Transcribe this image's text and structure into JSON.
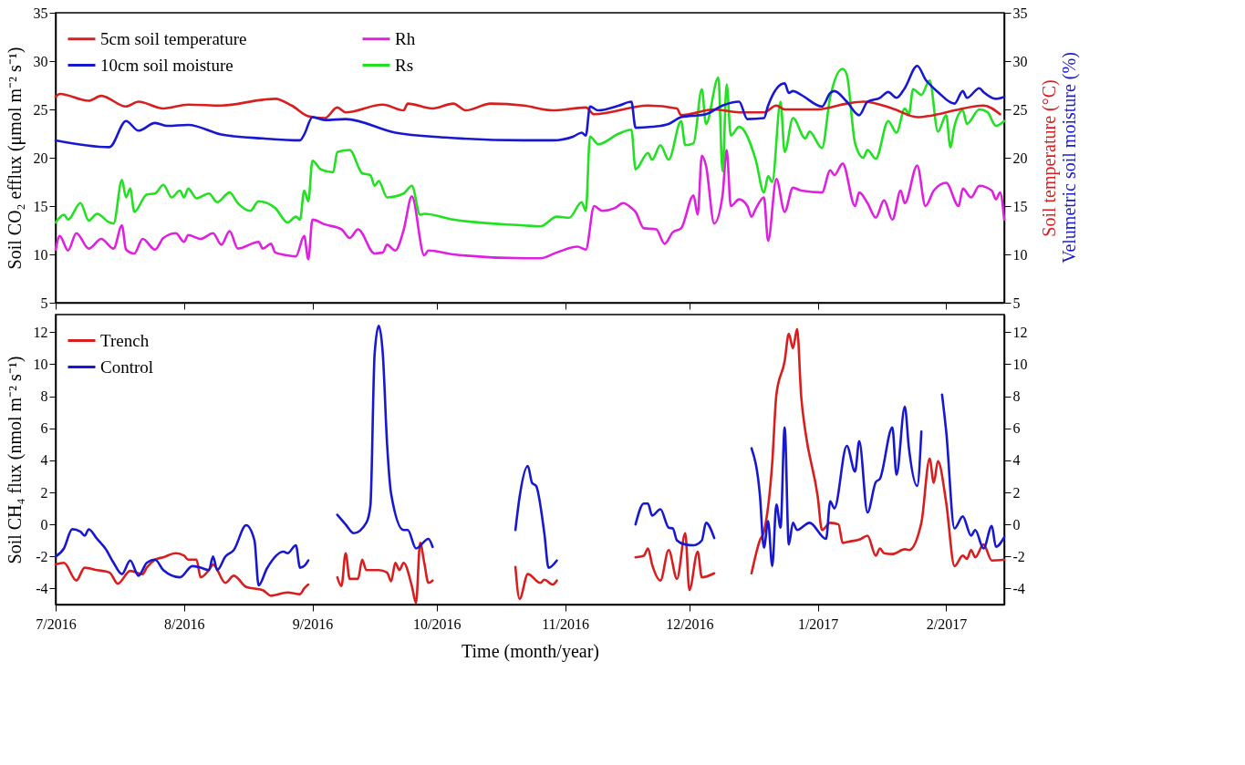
{
  "chart_data": [
    {
      "type": "line",
      "ylabel": "Soil CO₂ efflux (μmol m⁻² s⁻¹)",
      "y2label": "Soil temperature (°C)",
      "annotations": [
        "Velumetric soil moisture (%)"
      ],
      "xlim": [
        "2016-07-01",
        "2017-02-15"
      ],
      "xticks": [
        "2016-07-01",
        "2016-08-01",
        "2016-09-01",
        "2016-10-01",
        "2016-11-01",
        "2016-12-01",
        "2017-01-01",
        "2017-02-01"
      ],
      "tick_labels": "y",
      "ylim": [
        5,
        35
      ],
      "yticks": [
        5,
        10,
        15,
        20,
        25,
        30,
        35
      ],
      "y2lim": [
        5,
        35
      ],
      "y2ticks": [
        5,
        10,
        15,
        20,
        25,
        30,
        35
      ],
      "legend": "top left",
      "series": [
        {
          "name": "5cm soil temperature",
          "color": "#d81e1e",
          "axis": "y2",
          "x": [
            "2016-07-01",
            "2016-07-02",
            "2016-07-09",
            "2016-07-12",
            "2016-07-18",
            "2016-07-21",
            "2016-07-27",
            "2016-08-02",
            "2016-08-10",
            "2016-08-20",
            "2016-08-23",
            "2016-08-27",
            "2016-08-31",
            "2016-09-04",
            "2016-09-07",
            "2016-09-09",
            "2016-09-18",
            "2016-09-23",
            "2016-09-24",
            "2016-09-30",
            "2016-10-05",
            "2016-10-08",
            "2016-10-14",
            "2016-10-22",
            "2016-10-29",
            "2016-11-06",
            "2016-11-08",
            "2016-11-21",
            "2016-11-28",
            "2016-11-29",
            "2016-12-07",
            "2016-12-13",
            "2016-12-19",
            "2016-12-22",
            "2016-12-24",
            "2017-01-01",
            "2017-01-08",
            "2017-01-12",
            "2017-01-19",
            "2017-01-25",
            "2017-01-30",
            "2017-02-03",
            "2017-02-10",
            "2017-02-14"
          ],
          "values": [
            26.3,
            26.6,
            25.9,
            26.4,
            25.3,
            25.8,
            25.1,
            25.5,
            25.4,
            26.0,
            26.1,
            25.4,
            24.3,
            24.1,
            25.2,
            24.7,
            25.5,
            24.9,
            25.6,
            25.1,
            25.6,
            24.9,
            25.6,
            25.4,
            24.9,
            25.2,
            24.5,
            25.4,
            25.1,
            24.4,
            25.0,
            24.7,
            24.7,
            25.4,
            25.0,
            25.0,
            25.6,
            25.8,
            25.1,
            24.2,
            24.5,
            24.9,
            25.4,
            24.5
          ]
        },
        {
          "name": "Rh",
          "color": "#e020e0",
          "x": [
            "2016-07-01",
            "2016-07-02",
            "2016-07-04",
            "2016-07-06",
            "2016-07-09",
            "2016-07-12",
            "2016-07-15",
            "2016-07-17",
            "2016-07-18",
            "2016-07-20",
            "2016-07-22",
            "2016-07-25",
            "2016-07-27",
            "2016-07-30",
            "2016-08-01",
            "2016-08-02",
            "2016-08-05",
            "2016-08-08",
            "2016-08-10",
            "2016-08-12",
            "2016-08-14",
            "2016-08-19",
            "2016-08-20",
            "2016-08-22",
            "2016-08-23",
            "2016-08-26",
            "2016-08-28",
            "2016-08-30",
            "2016-08-31",
            "2016-09-01",
            "2016-09-04",
            "2016-09-08",
            "2016-09-10",
            "2016-09-12",
            "2016-09-16",
            "2016-09-18",
            "2016-09-19",
            "2016-09-21",
            "2016-09-23",
            "2016-09-25",
            "2016-09-28",
            "2016-09-29",
            "2016-10-05",
            "2016-10-22",
            "2016-10-26",
            "2016-10-30",
            "2016-11-04",
            "2016-11-06",
            "2016-11-08",
            "2016-11-10",
            "2016-11-13",
            "2016-11-15",
            "2016-11-17",
            "2016-11-18",
            "2016-11-20",
            "2016-11-23",
            "2016-11-25",
            "2016-11-27",
            "2016-11-29",
            "2016-12-02",
            "2016-12-03",
            "2016-12-04",
            "2016-12-05",
            "2016-12-07",
            "2016-12-09",
            "2016-12-10",
            "2016-12-11",
            "2016-12-13",
            "2016-12-15",
            "2016-12-16",
            "2016-12-17",
            "2016-12-19",
            "2016-12-20",
            "2016-12-22",
            "2016-12-24",
            "2016-12-26",
            "2016-12-28",
            "2017-01-02",
            "2017-01-04",
            "2017-01-05",
            "2017-01-07",
            "2017-01-10",
            "2017-01-11",
            "2017-01-13",
            "2017-01-15",
            "2017-01-17",
            "2017-01-19",
            "2017-01-21",
            "2017-01-22",
            "2017-01-25",
            "2017-01-27",
            "2017-01-29",
            "2017-02-01",
            "2017-02-04",
            "2017-02-05",
            "2017-02-07",
            "2017-02-09",
            "2017-02-12",
            "2017-02-13",
            "2017-02-14",
            "2017-02-15"
          ],
          "values": [
            10.5,
            11.9,
            10.4,
            12.2,
            10.6,
            11.6,
            10.6,
            13.0,
            10.5,
            10.1,
            11.6,
            10.5,
            11.7,
            12.2,
            11.3,
            12.0,
            11.6,
            12.2,
            11.0,
            12.4,
            10.6,
            11.3,
            10.6,
            11.1,
            10.2,
            9.9,
            9.8,
            11.9,
            9.5,
            13.6,
            13.1,
            12.6,
            11.7,
            12.6,
            10.1,
            10.2,
            11.0,
            10.4,
            12.5,
            16.0,
            9.9,
            10.4,
            10.0,
            9.6,
            9.6,
            10.2,
            10.8,
            10.5,
            15.0,
            14.5,
            14.8,
            15.3,
            14.8,
            14.4,
            12.7,
            12.6,
            11.1,
            12.3,
            12.7,
            16.1,
            14.1,
            20.2,
            19.2,
            13.2,
            16.1,
            20.8,
            15.0,
            15.7,
            15.0,
            13.9,
            14.7,
            15.9,
            11.4,
            17.8,
            14.4,
            16.9,
            16.6,
            16.4,
            18.7,
            18.2,
            19.4,
            15.0,
            16.4,
            15.3,
            13.8,
            15.6,
            13.6,
            16.6,
            15.3,
            19.2,
            15.0,
            16.6,
            17.4,
            15.0,
            16.8,
            15.9,
            17.1,
            16.6,
            15.7,
            16.4,
            13.6
          ]
        },
        {
          "name": "10cm soil moisture",
          "color": "#1818d0",
          "axis": "y2",
          "x": [
            "2016-07-01",
            "2016-07-14",
            "2016-07-18",
            "2016-07-21",
            "2016-07-25",
            "2016-07-28",
            "2016-08-02",
            "2016-08-10",
            "2016-08-20",
            "2016-08-29",
            "2016-08-30",
            "2016-09-01",
            "2016-09-04",
            "2016-09-09",
            "2016-09-21",
            "2016-10-03",
            "2016-10-22",
            "2016-10-29",
            "2016-11-03",
            "2016-11-05",
            "2016-11-06",
            "2016-11-07",
            "2016-11-09",
            "2016-11-14",
            "2016-11-17",
            "2016-11-18",
            "2016-11-22",
            "2016-11-26",
            "2016-11-29",
            "2016-12-05",
            "2016-12-09",
            "2016-12-13",
            "2016-12-15",
            "2016-12-19",
            "2016-12-20",
            "2016-12-24",
            "2016-12-25",
            "2016-12-26",
            "2016-12-28",
            "2017-01-02",
            "2017-01-04",
            "2017-01-05",
            "2017-01-08",
            "2017-01-11",
            "2017-01-13",
            "2017-01-16",
            "2017-01-18",
            "2017-01-20",
            "2017-01-22",
            "2017-01-25",
            "2017-01-27",
            "2017-01-30",
            "2017-02-03",
            "2017-02-05",
            "2017-02-06",
            "2017-02-09",
            "2017-02-10",
            "2017-02-13",
            "2017-02-15"
          ],
          "values": [
            21.8,
            21.1,
            23.8,
            22.8,
            23.6,
            23.3,
            23.4,
            22.4,
            22.0,
            21.8,
            22.4,
            24.2,
            23.9,
            24.0,
            22.6,
            22.1,
            21.8,
            21.8,
            22.2,
            22.6,
            22.3,
            25.3,
            24.9,
            25.4,
            25.8,
            23.1,
            23.2,
            23.5,
            24.2,
            24.5,
            25.4,
            25.8,
            24.0,
            24.1,
            25.4,
            27.7,
            26.7,
            26.9,
            26.5,
            25.3,
            26.7,
            26.9,
            25.8,
            24.4,
            25.8,
            26.2,
            26.8,
            26.2,
            27.2,
            29.5,
            28.1,
            26.8,
            25.6,
            26.9,
            26.2,
            27.2,
            26.8,
            26.1,
            26.3
          ]
        },
        {
          "name": "Rs",
          "color": "#22e022",
          "x": [
            "2016-07-01",
            "2016-07-03",
            "2016-07-04",
            "2016-07-07",
            "2016-07-09",
            "2016-07-11",
            "2016-07-14",
            "2016-07-15",
            "2016-07-17",
            "2016-07-18",
            "2016-07-19",
            "2016-07-20",
            "2016-07-23",
            "2016-07-25",
            "2016-07-27",
            "2016-07-29",
            "2016-07-31",
            "2016-08-01",
            "2016-08-02",
            "2016-08-04",
            "2016-08-07",
            "2016-08-09",
            "2016-08-12",
            "2016-08-14",
            "2016-08-17",
            "2016-08-19",
            "2016-08-23",
            "2016-08-26",
            "2016-08-28",
            "2016-08-29",
            "2016-08-30",
            "2016-08-31",
            "2016-09-01",
            "2016-09-03",
            "2016-09-06",
            "2016-09-07",
            "2016-09-10",
            "2016-09-13",
            "2016-09-15",
            "2016-09-16",
            "2016-09-17",
            "2016-09-19",
            "2016-09-23",
            "2016-09-25",
            "2016-09-27",
            "2016-09-28",
            "2016-10-05",
            "2016-10-22",
            "2016-10-26",
            "2016-10-30",
            "2016-11-02",
            "2016-11-05",
            "2016-11-06",
            "2016-11-07",
            "2016-11-09",
            "2016-11-14",
            "2016-11-17",
            "2016-11-18",
            "2016-11-21",
            "2016-11-22",
            "2016-11-24",
            "2016-11-26",
            "2016-11-29",
            "2016-11-30",
            "2016-12-02",
            "2016-12-04",
            "2016-12-05",
            "2016-12-08",
            "2016-12-09",
            "2016-12-10",
            "2016-12-11",
            "2016-12-13",
            "2016-12-17",
            "2016-12-19",
            "2016-12-20",
            "2016-12-21",
            "2016-12-23",
            "2016-12-24",
            "2016-12-26",
            "2016-12-29",
            "2016-12-30",
            "2017-01-02",
            "2017-01-04",
            "2017-01-07",
            "2017-01-08",
            "2017-01-10",
            "2017-01-12",
            "2017-01-13",
            "2017-01-15",
            "2017-01-18",
            "2017-01-20",
            "2017-01-22",
            "2017-01-23",
            "2017-01-24",
            "2017-01-26",
            "2017-01-28",
            "2017-01-30",
            "2017-02-01",
            "2017-02-02",
            "2017-02-03",
            "2017-02-05",
            "2017-02-06",
            "2017-02-09",
            "2017-02-11",
            "2017-02-13",
            "2017-02-15"
          ],
          "values": [
            13.3,
            14.1,
            13.6,
            15.3,
            13.5,
            14.2,
            13.3,
            13.2,
            17.7,
            15.9,
            16.8,
            14.4,
            16.2,
            16.3,
            17.2,
            15.9,
            16.6,
            15.9,
            16.8,
            15.8,
            16.3,
            15.4,
            16.4,
            15.3,
            14.5,
            15.5,
            14.8,
            13.3,
            13.9,
            13.6,
            16.6,
            15.5,
            19.7,
            18.8,
            18.5,
            20.6,
            20.8,
            18.4,
            18.2,
            17.1,
            17.6,
            15.9,
            16.3,
            17.1,
            14.1,
            14.2,
            13.6,
            13.0,
            12.9,
            13.9,
            13.8,
            15.4,
            14.5,
            22.2,
            21.4,
            22.5,
            22.9,
            18.8,
            20.5,
            19.8,
            21.3,
            19.8,
            23.8,
            21.3,
            21.5,
            27.1,
            23.5,
            28.3,
            18.6,
            27.6,
            22.3,
            23.2,
            19.8,
            16.4,
            18.1,
            17.5,
            25.8,
            20.6,
            24.1,
            22.0,
            22.7,
            21.0,
            26.3,
            29.2,
            28.6,
            21.5,
            20.0,
            20.8,
            19.9,
            23.8,
            22.6,
            25.1,
            24.5,
            27.1,
            26.5,
            28.0,
            22.7,
            24.4,
            21.1,
            23.3,
            24.9,
            23.5,
            25.0,
            24.7,
            23.3,
            23.8
          ]
        }
      ]
    },
    {
      "type": "line",
      "ylabel": "Soil CH₄ flux (nmol m⁻² s⁻¹)",
      "xlabel": "Time (month/year)",
      "xlim": [
        "2016-07-01",
        "2017-02-15"
      ],
      "xticks": [
        {
          "value": "2016-07-01",
          "label": "7/2016"
        },
        {
          "value": "2016-08-01",
          "label": "8/2016"
        },
        {
          "value": "2016-09-01",
          "label": "9/2016"
        },
        {
          "value": "2016-10-01",
          "label": "10/2016"
        },
        {
          "value": "2016-11-01",
          "label": "11/2016"
        },
        {
          "value": "2016-12-01",
          "label": "12/2016"
        },
        {
          "value": "2017-01-01",
          "label": "1/2017"
        },
        {
          "value": "2017-02-01",
          "label": "2/2017"
        }
      ],
      "ylim": [
        -5,
        13.1
      ],
      "yticks": [
        -4,
        -2,
        0,
        2,
        4,
        6,
        8,
        10,
        12
      ],
      "y2lim": [
        -5,
        13.1
      ],
      "y2ticks": [
        -4,
        -2,
        0,
        2,
        4,
        6,
        8,
        10,
        12
      ],
      "legend": "top left",
      "series": [
        {
          "name": "Trench",
          "color": "#d81e1e",
          "x": [
            "2016-07-01",
            "2016-07-03",
            "2016-07-06",
            "2016-07-08",
            "2016-07-11",
            "2016-07-14",
            "2016-07-16",
            "2016-07-19",
            "2016-07-22",
            "2016-07-23",
            "2016-07-25",
            "2016-07-27",
            "2016-07-30",
            "2016-08-01",
            "2016-08-02",
            "2016-08-04",
            "2016-08-05",
            "2016-08-07",
            "2016-08-08",
            "2016-08-11",
            "2016-08-13",
            "2016-08-16",
            "2016-08-20",
            "2016-08-22",
            "2016-08-26",
            "2016-08-29",
            "2016-08-30",
            "2016-08-31",
            "2016-09-04",
            "2016-09-07",
            "2016-09-08",
            "2016-09-09",
            "2016-09-10",
            "2016-09-12",
            "2016-09-13",
            "2016-09-14",
            "2016-09-17",
            "2016-09-19",
            "2016-09-20",
            "2016-09-21",
            "2016-09-22",
            "2016-09-23",
            "2016-09-25",
            "2016-09-26",
            "2016-09-27",
            "2016-09-28",
            "2016-09-29",
            "2016-09-30",
            "2016-10-10",
            "2016-10-20",
            "2016-10-21",
            "2016-10-23",
            "2016-10-26",
            "2016-10-27",
            "2016-10-29",
            "2016-10-30",
            "2016-11-10",
            "2016-11-18",
            "2016-11-20",
            "2016-11-21",
            "2016-11-22",
            "2016-11-24",
            "2016-11-26",
            "2016-11-28",
            "2016-11-30",
            "2016-12-01",
            "2016-12-03",
            "2016-12-04",
            "2016-12-07",
            "2016-12-11",
            "2016-12-16",
            "2016-12-18",
            "2016-12-19",
            "2016-12-21",
            "2016-12-22",
            "2016-12-24",
            "2016-12-25",
            "2016-12-26",
            "2016-12-27",
            "2016-12-28",
            "2016-12-29",
            "2017-01-01",
            "2017-01-02",
            "2017-01-04",
            "2017-01-06",
            "2017-01-07",
            "2017-01-09",
            "2017-01-11",
            "2017-01-13",
            "2017-01-15",
            "2017-01-16",
            "2017-01-17",
            "2017-01-19",
            "2017-01-22",
            "2017-01-23",
            "2017-01-26",
            "2017-01-28",
            "2017-01-29",
            "2017-01-30",
            "2017-02-01",
            "2017-02-03",
            "2017-02-05",
            "2017-02-06",
            "2017-02-07",
            "2017-02-08",
            "2017-02-10",
            "2017-02-12",
            "2017-02-15"
          ],
          "values": [
            -2.5,
            -2.4,
            -3.5,
            -2.7,
            -2.85,
            -3.0,
            -3.7,
            -2.9,
            -3.1,
            -2.7,
            -2.2,
            -2.05,
            -1.8,
            -1.95,
            -2.2,
            -2.2,
            -3.3,
            -2.85,
            -2.5,
            -3.65,
            -3.2,
            -3.9,
            -4.1,
            -4.45,
            -4.25,
            -4.35,
            -4.0,
            -3.75,
            null,
            -3.3,
            -3.85,
            -1.8,
            -3.4,
            -3.4,
            -2.2,
            -2.85,
            -2.85,
            -3.0,
            -3.55,
            -2.4,
            -2.85,
            -2.4,
            -3.85,
            -4.9,
            -1.15,
            -2.4,
            -3.65,
            -3.5,
            null,
            -2.65,
            -4.65,
            -3.1,
            -3.65,
            -3.45,
            -3.75,
            -3.5,
            null,
            -2.05,
            -1.95,
            -1.5,
            -2.5,
            -3.5,
            -1.6,
            -3.4,
            -0.55,
            -4.1,
            -1.7,
            -3.3,
            -3.05,
            null,
            -3.05,
            -1.0,
            -0.45,
            3.85,
            8.1,
            10.2,
            11.9,
            11.0,
            12.2,
            7.95,
            5.8,
            1.7,
            -0.35,
            0.1,
            0.0,
            -1.15,
            -1.05,
            -0.95,
            -0.7,
            -1.95,
            -1.5,
            -1.8,
            -1.85,
            -1.55,
            -1.6,
            0.1,
            4.1,
            2.6,
            3.95,
            1.35,
            -2.6,
            -1.95,
            -2.15,
            -1.6,
            -2.05,
            -1.25,
            -2.25,
            -2.2
          ]
        },
        {
          "name": "Control",
          "color": "#1818d0",
          "x": [
            "2016-07-01",
            "2016-07-03",
            "2016-07-05",
            "2016-07-07",
            "2016-07-08",
            "2016-07-09",
            "2016-07-11",
            "2016-07-13",
            "2016-07-15",
            "2016-07-17",
            "2016-07-19",
            "2016-07-21",
            "2016-07-23",
            "2016-07-25",
            "2016-07-27",
            "2016-07-31",
            "2016-08-03",
            "2016-08-05",
            "2016-08-07",
            "2016-08-08",
            "2016-08-09",
            "2016-08-11",
            "2016-08-13",
            "2016-08-16",
            "2016-08-18",
            "2016-08-19",
            "2016-08-21",
            "2016-08-25",
            "2016-08-26",
            "2016-08-28",
            "2016-08-29",
            "2016-08-30",
            "2016-08-31",
            "2016-09-04",
            "2016-09-07",
            "2016-09-09",
            "2016-09-11",
            "2016-09-14",
            "2016-09-15",
            "2016-09-16",
            "2016-09-17",
            "2016-09-18",
            "2016-09-19",
            "2016-09-20",
            "2016-09-23",
            "2016-09-24",
            "2016-09-26",
            "2016-09-29",
            "2016-09-30",
            "2016-10-10",
            "2016-10-20",
            "2016-10-21",
            "2016-10-23",
            "2016-10-24",
            "2016-10-25",
            "2016-10-27",
            "2016-10-28",
            "2016-10-30",
            "2016-11-10",
            "2016-11-18",
            "2016-11-20",
            "2016-11-21",
            "2016-11-22",
            "2016-11-24",
            "2016-11-26",
            "2016-11-27",
            "2016-11-28",
            "2016-11-30",
            "2016-12-02",
            "2016-12-04",
            "2016-12-05",
            "2016-12-07",
            "2016-12-11",
            "2016-12-16",
            "2016-12-18",
            "2016-12-19",
            "2016-12-20",
            "2016-12-21",
            "2016-12-22",
            "2016-12-23",
            "2016-12-24",
            "2016-12-25",
            "2016-12-26",
            "2016-12-27",
            "2016-12-30",
            "2017-01-03",
            "2017-01-04",
            "2017-01-05",
            "2017-01-08",
            "2017-01-10",
            "2017-01-11",
            "2017-01-13",
            "2017-01-15",
            "2017-01-16",
            "2017-01-19",
            "2017-01-20",
            "2017-01-22",
            "2017-01-23",
            "2017-01-25",
            "2017-01-26",
            "2017-01-27",
            "2017-01-28",
            "2017-01-31",
            "2017-02-01",
            "2017-02-03",
            "2017-02-05",
            "2017-02-07",
            "2017-02-08",
            "2017-02-10",
            "2017-02-12",
            "2017-02-13",
            "2017-02-15"
          ],
          "values": [
            -2.0,
            -1.5,
            -0.3,
            -0.45,
            -0.7,
            -0.3,
            -0.9,
            -1.5,
            -2.4,
            -3.1,
            -2.25,
            -3.2,
            -2.4,
            -2.2,
            -2.85,
            -3.3,
            -2.6,
            -2.7,
            -2.85,
            -2.0,
            -2.85,
            -2.0,
            -1.6,
            -0.05,
            -1.0,
            -3.8,
            -2.75,
            -1.7,
            -1.8,
            -1.3,
            -2.7,
            -2.6,
            -2.25,
            null,
            0.6,
            0.0,
            -0.55,
            0.1,
            1.2,
            10.6,
            12.4,
            10.6,
            5.1,
            1.9,
            -0.35,
            -0.35,
            -1.5,
            -0.9,
            -1.4,
            null,
            -0.35,
            1.7,
            3.65,
            2.6,
            2.4,
            -0.6,
            -2.7,
            -2.25,
            null,
            0.0,
            1.3,
            1.3,
            0.55,
            0.95,
            -0.2,
            -0.25,
            -1.0,
            -1.25,
            -1.3,
            -1.0,
            0.1,
            -0.85,
            null,
            4.75,
            1.9,
            -1.45,
            0.2,
            -2.6,
            1.25,
            -0.2,
            6.05,
            -1.25,
            0.1,
            -0.35,
            0.1,
            -0.9,
            1.45,
            1.0,
            4.9,
            3.3,
            5.2,
            0.75,
            2.65,
            2.85,
            6.05,
            3.1,
            7.35,
            4.75,
            2.4,
            5.8,
            null,
            null,
            8.1,
            5.8,
            -0.25,
            0.5,
            -0.7,
            -0.35,
            -1.5,
            -0.1,
            -1.4,
            -0.8
          ]
        }
      ]
    }
  ]
}
